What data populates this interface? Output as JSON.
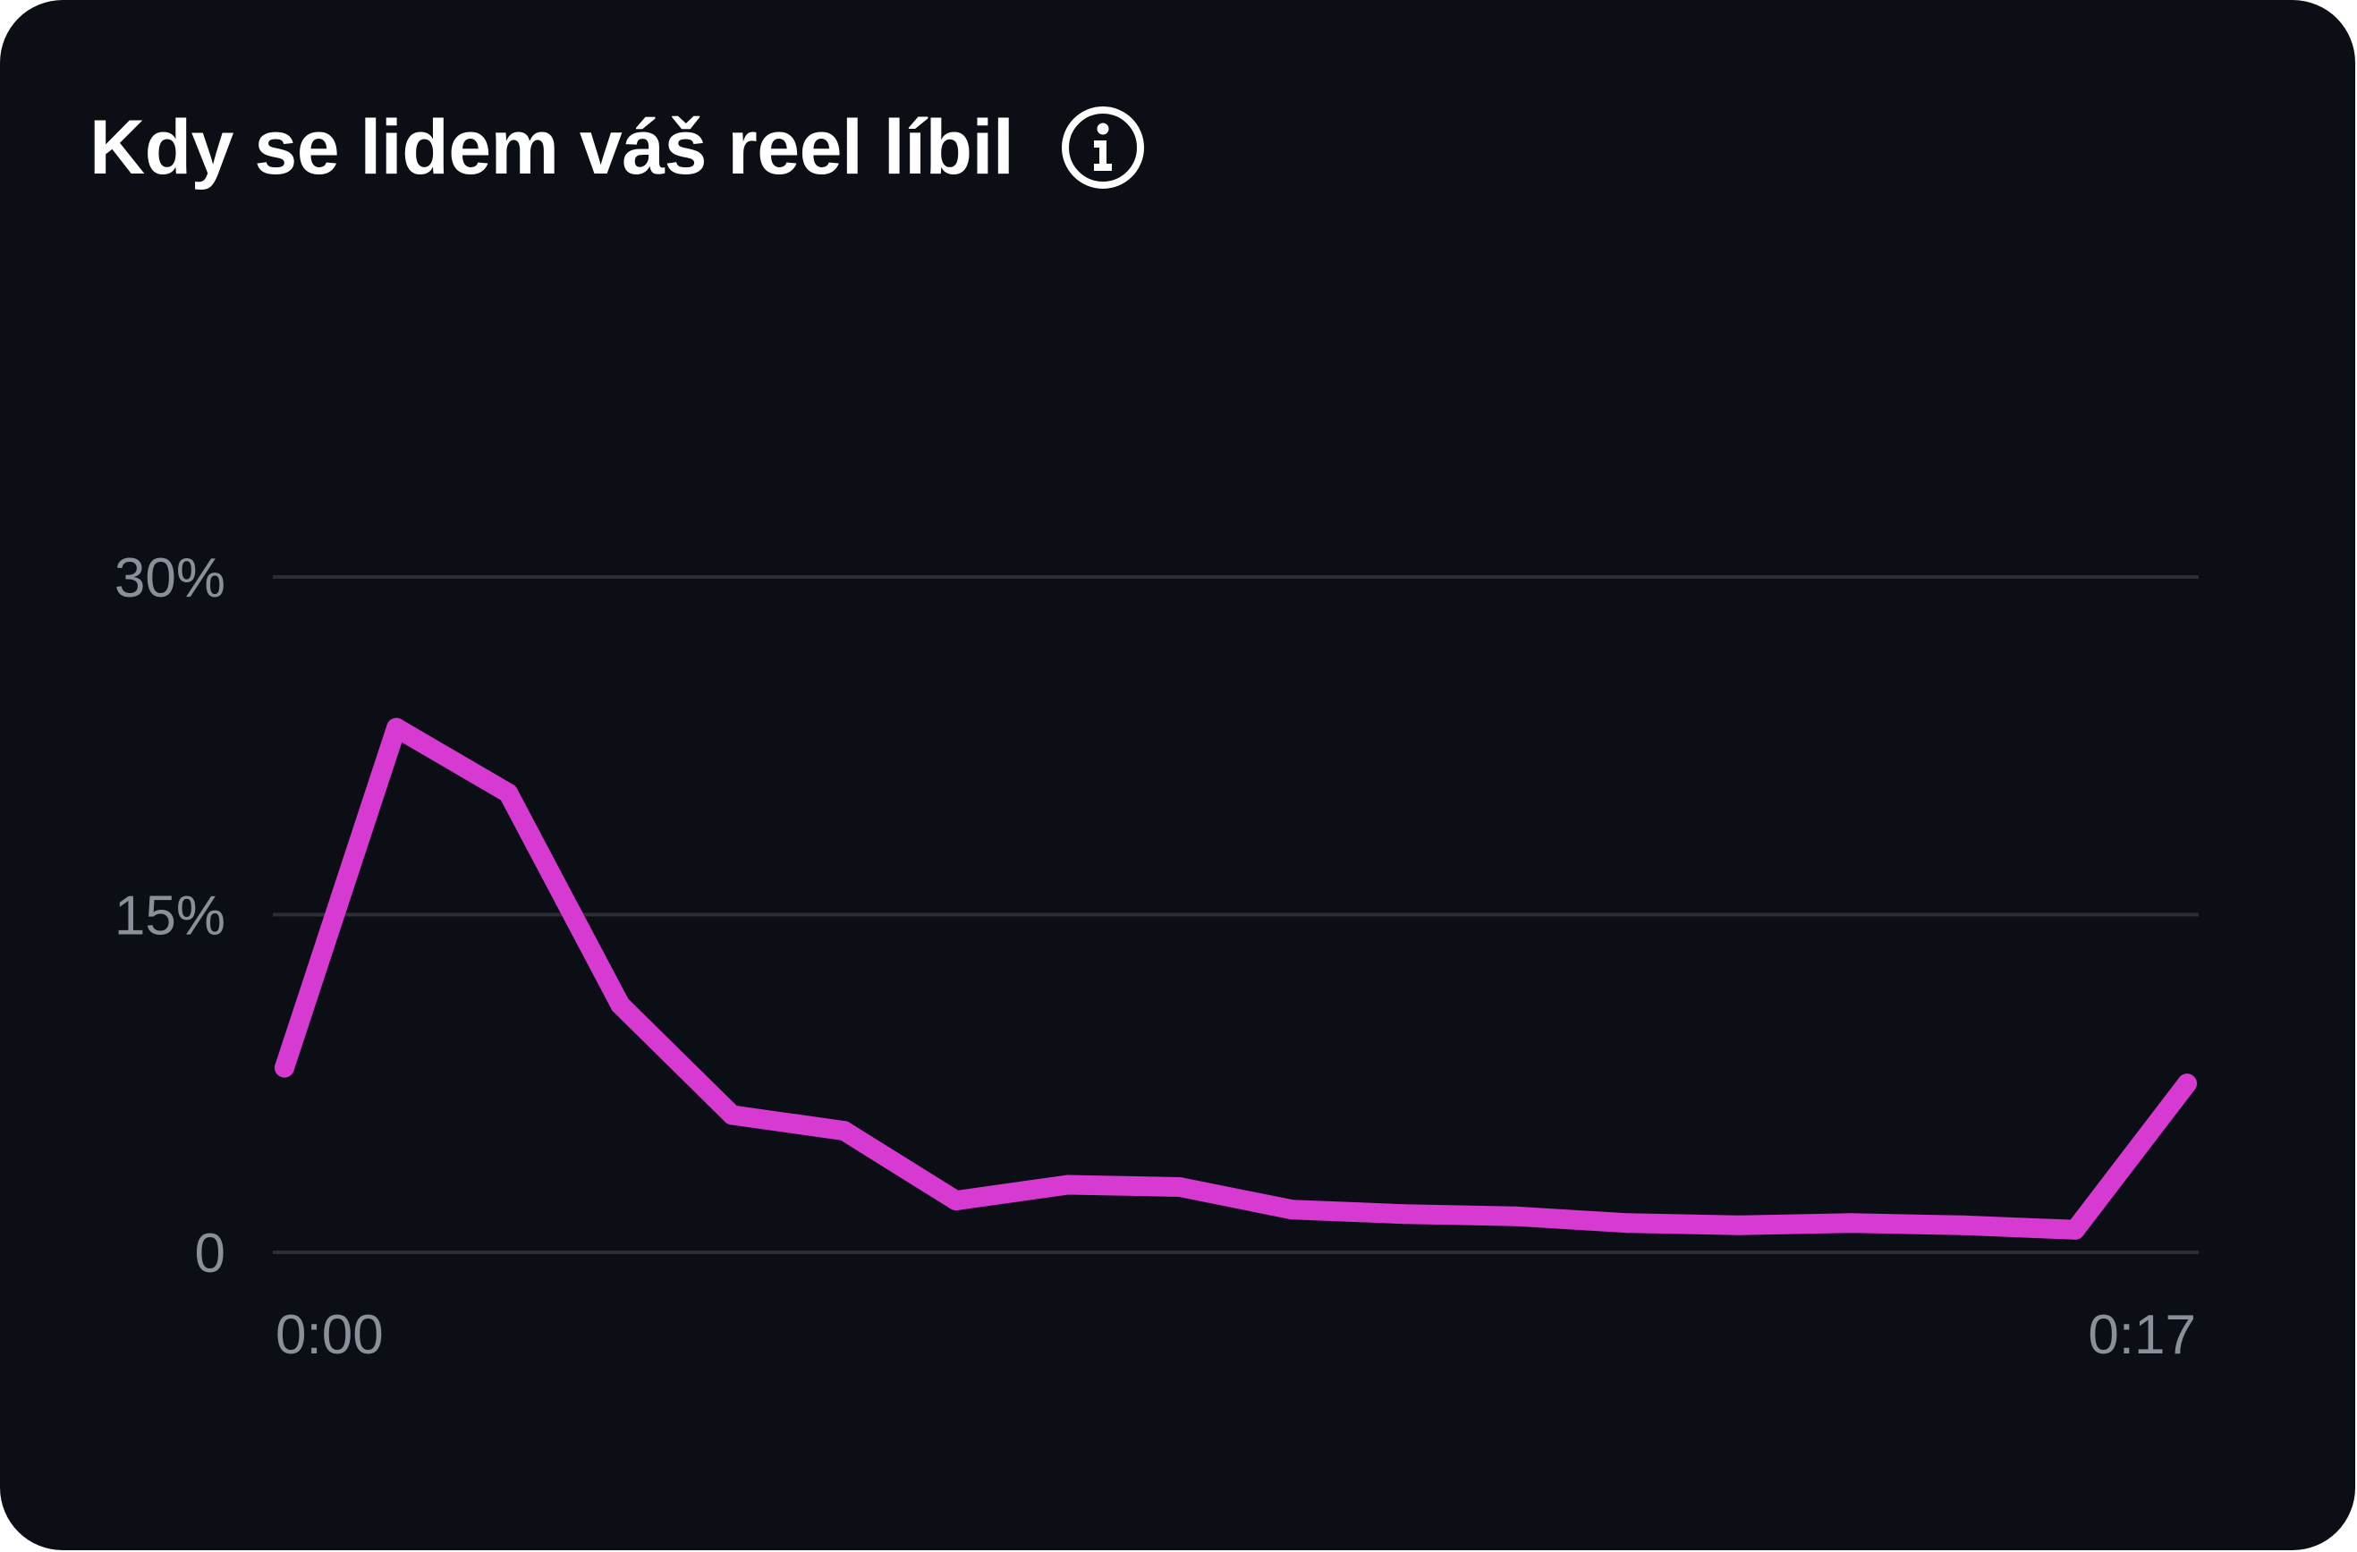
{
  "card": {
    "title": "Kdy se lidem váš reel líbil",
    "info_icon": "info-circle-icon"
  },
  "colors": {
    "background": "#0b0e14",
    "line": "#d63ad1",
    "grid": "#2b2e35",
    "tick_text": "#8a8f99",
    "title_text": "#ffffff"
  },
  "chart_data": {
    "type": "line",
    "title": "Kdy se lidem váš reel líbil",
    "xlabel": "",
    "ylabel": "",
    "x": [
      "0:00",
      "0:01",
      "0:02",
      "0:03",
      "0:04",
      "0:05",
      "0:06",
      "0:07",
      "0:08",
      "0:09",
      "0:10",
      "0:11",
      "0:12",
      "0:13",
      "0:14",
      "0:15",
      "0:16",
      "0:17"
    ],
    "x_ticks": [
      "0:00",
      "0:17"
    ],
    "y_ticks": [
      "0",
      "15%",
      "30%"
    ],
    "y_tick_values": [
      0,
      15,
      30
    ],
    "ylim": [
      0,
      30
    ],
    "series": [
      {
        "values": [
          8.2,
          23.3,
          20.4,
          11.0,
          6.1,
          5.4,
          2.3,
          3.0,
          2.9,
          1.9,
          1.7,
          1.6,
          1.3,
          1.2,
          1.3,
          1.2,
          1.0,
          7.5
        ]
      }
    ],
    "grid": true,
    "legend": "none"
  }
}
